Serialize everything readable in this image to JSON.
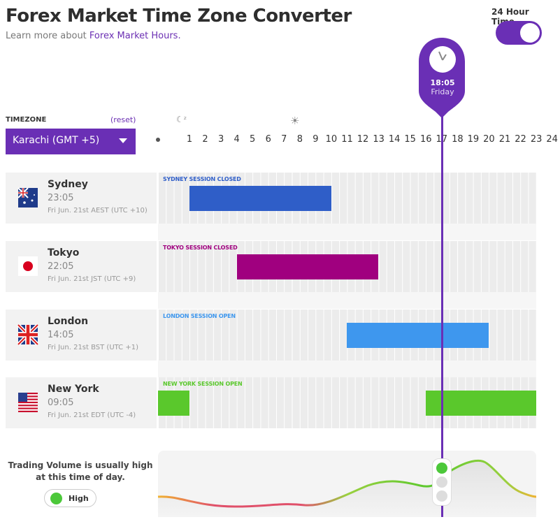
{
  "header": {
    "title": "Forex Market Time Zone Converter",
    "subtitle_prefix": "Learn more about ",
    "subtitle_link": "Forex Market Hours."
  },
  "toggle": {
    "label": "24 Hour Time",
    "on": true
  },
  "timezone": {
    "label": "TIMEZONE",
    "reset": "(reset)",
    "selected": "Karachi (GMT +5)"
  },
  "icons": {
    "night": "night-sleep-icon",
    "day": "sun-icon",
    "clock": "clock-icon",
    "dropdown": "caret-down-icon"
  },
  "hours": [
    "1",
    "2",
    "3",
    "4",
    "5",
    "6",
    "7",
    "8",
    "9",
    "10",
    "11",
    "12",
    "13",
    "14",
    "15",
    "16",
    "17",
    "18",
    "19",
    "20",
    "21",
    "22",
    "23",
    "24"
  ],
  "current": {
    "time": "18:05",
    "day": "Friday"
  },
  "sessions": [
    {
      "city": "Sydney",
      "local_time": "23:05",
      "date": "Fri Jun. 21st AEST (UTC +10)",
      "status": "SYDNEY SESSION CLOSED",
      "color": "#2f5ec8",
      "label_color": "#2f5ec8",
      "flag": "australia-flag-icon"
    },
    {
      "city": "Tokyo",
      "local_time": "22:05",
      "date": "Fri Jun. 21st JST (UTC +9)",
      "status": "TOKYO SESSION CLOSED",
      "color": "#a0007f",
      "label_color": "#a0007f",
      "flag": "japan-flag-icon"
    },
    {
      "city": "London",
      "local_time": "14:05",
      "date": "Fri Jun. 21st BST (UTC +1)",
      "status": "LONDON SESSION OPEN",
      "color": "#3e97ee",
      "label_color": "#3e97ee",
      "flag": "uk-flag-icon"
    },
    {
      "city": "New York",
      "local_time": "09:05",
      "date": "Fri Jun. 21st EDT (UTC -4)",
      "status": "NEW YORK SESSION OPEN",
      "color": "#5ac82c",
      "label_color": "#5ac82c",
      "flag": "usa-flag-icon"
    }
  ],
  "volume": {
    "text": "Trading Volume is usually high at this time of day.",
    "level": "High",
    "level_color": "#4cc83a"
  },
  "colors": {
    "accent": "#6a2fb5"
  }
}
